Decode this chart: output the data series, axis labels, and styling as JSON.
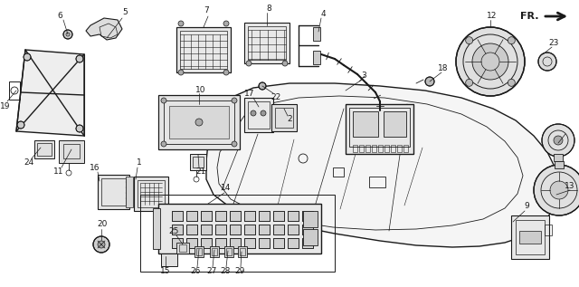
{
  "bg_color": "#ffffff",
  "line_color": "#1a1a1a",
  "fig_width": 6.4,
  "fig_height": 3.17,
  "dpi": 100
}
